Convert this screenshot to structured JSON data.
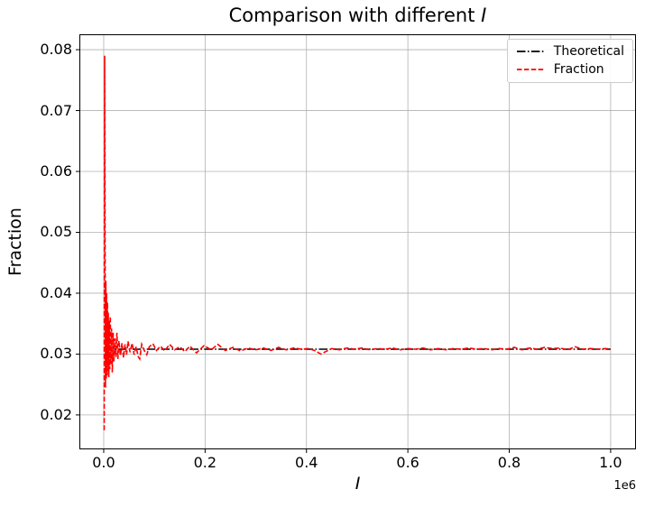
{
  "figure": {
    "title_prefix": "Comparison with different ",
    "title_math": "I"
  },
  "chart_data": {
    "type": "line",
    "title": "Comparison with different I",
    "xlabel": "I",
    "ylabel": "Fraction",
    "x_offset_text": "1e6",
    "xlim": [
      -48000,
      1050000
    ],
    "ylim": [
      0.01435,
      0.08253
    ],
    "xticks": [
      0,
      200000,
      400000,
      600000,
      800000,
      1000000
    ],
    "xtick_labels": [
      "0.0",
      "0.2",
      "0.4",
      "0.6",
      "0.8",
      "1.0"
    ],
    "yticks": [
      0.02,
      0.03,
      0.04,
      0.05,
      0.06,
      0.07,
      0.08
    ],
    "ytick_labels": [
      "0.02",
      "0.03",
      "0.04",
      "0.05",
      "0.06",
      "0.07",
      "0.08"
    ],
    "grid": true,
    "colors": {
      "grid": "#b0b0b0",
      "spine": "#000000",
      "theoretical": "#000000",
      "fraction": "#ff0000"
    },
    "legend": {
      "position": "upper right",
      "entries": [
        {
          "label": "Theoretical",
          "color": "#000000",
          "linestyle": "dashdot"
        },
        {
          "label": "Fraction",
          "color": "#ff0000",
          "linestyle": "dashed"
        }
      ]
    },
    "series": [
      {
        "name": "Theoretical",
        "color": "#000000",
        "linestyle": "dashdot",
        "points": [
          [
            0,
            0.0308
          ],
          [
            1000000,
            0.0308
          ]
        ]
      },
      {
        "name": "Fraction",
        "color": "#ff0000",
        "linestyle": "dashed",
        "points": [
          [
            1000,
            0.0175
          ],
          [
            1800,
            0.079
          ],
          [
            2600,
            0.0525
          ],
          [
            3400,
            0.0245
          ],
          [
            4200,
            0.042
          ],
          [
            5000,
            0.0258
          ],
          [
            5800,
            0.04
          ],
          [
            6600,
            0.0265
          ],
          [
            7400,
            0.0385
          ],
          [
            8200,
            0.0272
          ],
          [
            9000,
            0.0368
          ],
          [
            10000,
            0.0262
          ],
          [
            11000,
            0.0355
          ],
          [
            12000,
            0.0275
          ],
          [
            13000,
            0.0362
          ],
          [
            14000,
            0.0284
          ],
          [
            15500,
            0.0342
          ],
          [
            17000,
            0.027
          ],
          [
            18500,
            0.0335
          ],
          [
            20000,
            0.0288
          ],
          [
            22000,
            0.0326
          ],
          [
            24000,
            0.0295
          ],
          [
            26000,
            0.0335
          ],
          [
            28000,
            0.0292
          ],
          [
            30000,
            0.0322
          ],
          [
            33000,
            0.0297
          ],
          [
            36000,
            0.0318
          ],
          [
            39000,
            0.0294
          ],
          [
            42000,
            0.0316
          ],
          [
            45000,
            0.0299
          ],
          [
            48000,
            0.0321
          ],
          [
            52000,
            0.0303
          ],
          [
            56000,
            0.0318
          ],
          [
            60000,
            0.0299
          ],
          [
            64000,
            0.0312
          ],
          [
            68000,
            0.0296
          ],
          [
            71000,
            0.0292
          ],
          [
            75000,
            0.0316
          ],
          [
            80000,
            0.0306
          ],
          [
            85000,
            0.0299
          ],
          [
            90000,
            0.0312
          ],
          [
            97000,
            0.0317
          ],
          [
            104000,
            0.0306
          ],
          [
            112000,
            0.0313
          ],
          [
            120000,
            0.0305
          ],
          [
            130000,
            0.0316
          ],
          [
            140000,
            0.0307
          ],
          [
            150000,
            0.0312
          ],
          [
            160000,
            0.0304
          ],
          [
            170000,
            0.0313
          ],
          [
            183000,
            0.0302
          ],
          [
            198000,
            0.0314
          ],
          [
            212000,
            0.0307
          ],
          [
            225000,
            0.0316
          ],
          [
            240000,
            0.0306
          ],
          [
            255000,
            0.0311
          ],
          [
            270000,
            0.0305
          ],
          [
            285000,
            0.031
          ],
          [
            300000,
            0.0307
          ],
          [
            315000,
            0.031
          ],
          [
            330000,
            0.0306
          ],
          [
            345000,
            0.0311
          ],
          [
            360000,
            0.0307
          ],
          [
            375000,
            0.031
          ],
          [
            390000,
            0.0308
          ],
          [
            405000,
            0.0309
          ],
          [
            418000,
            0.0305
          ],
          [
            428000,
            0.03
          ],
          [
            438000,
            0.0304
          ],
          [
            450000,
            0.0309
          ],
          [
            465000,
            0.0307
          ],
          [
            480000,
            0.031
          ],
          [
            495000,
            0.0308
          ],
          [
            510000,
            0.031
          ],
          [
            525000,
            0.0307
          ],
          [
            540000,
            0.0309
          ],
          [
            555000,
            0.0308
          ],
          [
            570000,
            0.031
          ],
          [
            585000,
            0.0307
          ],
          [
            600000,
            0.0309
          ],
          [
            615000,
            0.0308
          ],
          [
            630000,
            0.031
          ],
          [
            645000,
            0.0307
          ],
          [
            660000,
            0.0309
          ],
          [
            675000,
            0.0307
          ],
          [
            690000,
            0.0309
          ],
          [
            705000,
            0.0308
          ],
          [
            720000,
            0.031
          ],
          [
            735000,
            0.0308
          ],
          [
            750000,
            0.0309
          ],
          [
            765000,
            0.0307
          ],
          [
            780000,
            0.0309
          ],
          [
            795000,
            0.0308
          ],
          [
            810000,
            0.0311
          ],
          [
            825000,
            0.0307
          ],
          [
            840000,
            0.031
          ],
          [
            855000,
            0.0308
          ],
          [
            870000,
            0.0311
          ],
          [
            885000,
            0.0309
          ],
          [
            900000,
            0.031
          ],
          [
            915000,
            0.0307
          ],
          [
            930000,
            0.0312
          ],
          [
            945000,
            0.0308
          ],
          [
            960000,
            0.0309
          ],
          [
            975000,
            0.0308
          ],
          [
            990000,
            0.0309
          ],
          [
            1000000,
            0.0308
          ]
        ]
      }
    ]
  }
}
